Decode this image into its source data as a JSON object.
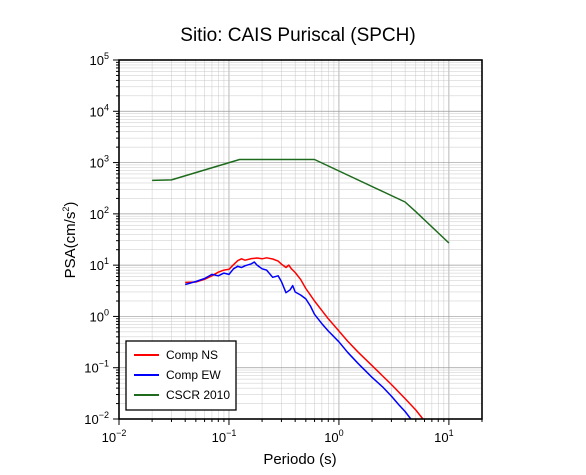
{
  "chart_data": {
    "type": "line",
    "title": "Sitio: CAIS Puriscal (SPCH)",
    "xlabel": "Periodo (s)",
    "ylabel_base": "PSA(cm/s",
    "ylabel_sup": "2",
    "ylabel_end": ")",
    "xscale": "log",
    "yscale": "log",
    "xlim": [
      0.01,
      20
    ],
    "ylim": [
      0.01,
      100000
    ],
    "grid": true,
    "legend_position": "bottom-left",
    "x_ticks": [
      {
        "base": "10",
        "exp": "−2",
        "value": 0.01
      },
      {
        "base": "10",
        "exp": "−1",
        "value": 0.1
      },
      {
        "base": "10",
        "exp": "0",
        "value": 1
      },
      {
        "base": "10",
        "exp": "1",
        "value": 10
      }
    ],
    "y_ticks": [
      {
        "base": "10",
        "exp": "−2",
        "value": 0.01
      },
      {
        "base": "10",
        "exp": "−1",
        "value": 0.1
      },
      {
        "base": "10",
        "exp": "0",
        "value": 1
      },
      {
        "base": "10",
        "exp": "1",
        "value": 10
      },
      {
        "base": "10",
        "exp": "2",
        "value": 100
      },
      {
        "base": "10",
        "exp": "3",
        "value": 1000
      },
      {
        "base": "10",
        "exp": "4",
        "value": 10000
      },
      {
        "base": "10",
        "exp": "5",
        "value": 100000
      }
    ],
    "series": [
      {
        "name": "Comp NS",
        "color": "#ff0000",
        "points": [
          [
            0.04,
            4.6
          ],
          [
            0.05,
            4.7
          ],
          [
            0.06,
            5.3
          ],
          [
            0.07,
            6.2
          ],
          [
            0.08,
            7.3
          ],
          [
            0.09,
            8.0
          ],
          [
            0.1,
            8.3
          ],
          [
            0.11,
            10.2
          ],
          [
            0.12,
            12.2
          ],
          [
            0.13,
            13.3
          ],
          [
            0.14,
            12.5
          ],
          [
            0.16,
            13.4
          ],
          [
            0.18,
            13.8
          ],
          [
            0.2,
            13.3
          ],
          [
            0.22,
            13.9
          ],
          [
            0.25,
            13.2
          ],
          [
            0.28,
            12.0
          ],
          [
            0.3,
            10.5
          ],
          [
            0.33,
            9.0
          ],
          [
            0.35,
            10.0
          ],
          [
            0.37,
            8.5
          ],
          [
            0.4,
            7.2
          ],
          [
            0.45,
            5.2
          ],
          [
            0.5,
            3.5
          ],
          [
            0.55,
            2.6
          ],
          [
            0.6,
            2.0
          ],
          [
            0.7,
            1.3
          ],
          [
            0.8,
            0.9
          ],
          [
            1.0,
            0.52
          ],
          [
            1.2,
            0.33
          ],
          [
            1.5,
            0.2
          ],
          [
            2.0,
            0.11
          ],
          [
            3.0,
            0.047
          ],
          [
            4.0,
            0.025
          ],
          [
            5.0,
            0.015
          ],
          [
            5.8,
            0.01
          ]
        ]
      },
      {
        "name": "Comp EW",
        "color": "#0000ff",
        "points": [
          [
            0.04,
            4.2
          ],
          [
            0.05,
            4.8
          ],
          [
            0.06,
            5.5
          ],
          [
            0.07,
            6.6
          ],
          [
            0.08,
            6.2
          ],
          [
            0.09,
            7.0
          ],
          [
            0.1,
            6.6
          ],
          [
            0.11,
            8.5
          ],
          [
            0.12,
            9.5
          ],
          [
            0.13,
            9.0
          ],
          [
            0.14,
            9.7
          ],
          [
            0.16,
            10.6
          ],
          [
            0.17,
            11.5
          ],
          [
            0.18,
            10.0
          ],
          [
            0.2,
            8.5
          ],
          [
            0.22,
            8.0
          ],
          [
            0.25,
            5.8
          ],
          [
            0.28,
            6.2
          ],
          [
            0.3,
            4.8
          ],
          [
            0.33,
            2.9
          ],
          [
            0.36,
            3.3
          ],
          [
            0.38,
            4.0
          ],
          [
            0.4,
            3.0
          ],
          [
            0.45,
            2.6
          ],
          [
            0.5,
            2.2
          ],
          [
            0.55,
            1.6
          ],
          [
            0.6,
            1.1
          ],
          [
            0.7,
            0.72
          ],
          [
            0.8,
            0.52
          ],
          [
            1.0,
            0.32
          ],
          [
            1.2,
            0.2
          ],
          [
            1.5,
            0.12
          ],
          [
            2.0,
            0.065
          ],
          [
            2.5,
            0.042
          ],
          [
            3.0,
            0.028
          ],
          [
            3.5,
            0.019
          ],
          [
            4.0,
            0.014
          ],
          [
            4.5,
            0.01
          ]
        ]
      },
      {
        "name": "CSCR 2010",
        "color": "#1e6b1e",
        "points": [
          [
            0.02,
            450
          ],
          [
            0.03,
            460
          ],
          [
            0.125,
            1150
          ],
          [
            0.6,
            1150
          ],
          [
            4.0,
            170
          ],
          [
            5.0,
            110
          ],
          [
            10.0,
            27
          ]
        ]
      }
    ]
  }
}
